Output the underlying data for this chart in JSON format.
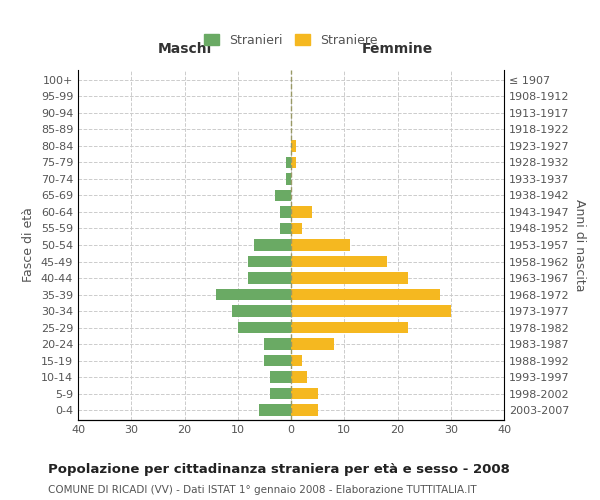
{
  "age_groups": [
    "100+",
    "95-99",
    "90-94",
    "85-89",
    "80-84",
    "75-79",
    "70-74",
    "65-69",
    "60-64",
    "55-59",
    "50-54",
    "45-49",
    "40-44",
    "35-39",
    "30-34",
    "25-29",
    "20-24",
    "15-19",
    "10-14",
    "5-9",
    "0-4"
  ],
  "birth_years": [
    "≤ 1907",
    "1908-1912",
    "1913-1917",
    "1918-1922",
    "1923-1927",
    "1928-1932",
    "1933-1937",
    "1938-1942",
    "1943-1947",
    "1948-1952",
    "1953-1957",
    "1958-1962",
    "1963-1967",
    "1968-1972",
    "1973-1977",
    "1978-1982",
    "1983-1987",
    "1988-1992",
    "1993-1997",
    "1998-2002",
    "2003-2007"
  ],
  "males": [
    0,
    0,
    0,
    0,
    0,
    1,
    1,
    3,
    2,
    2,
    7,
    8,
    8,
    14,
    11,
    10,
    5,
    5,
    4,
    4,
    6
  ],
  "females": [
    0,
    0,
    0,
    0,
    1,
    1,
    0,
    0,
    4,
    2,
    11,
    18,
    22,
    28,
    30,
    22,
    8,
    2,
    3,
    5,
    5
  ],
  "male_color": "#6aaa64",
  "female_color": "#f5b820",
  "bar_height": 0.7,
  "xlim": 40,
  "title": "Popolazione per cittadinanza straniera per età e sesso - 2008",
  "subtitle": "COMUNE DI RICADI (VV) - Dati ISTAT 1° gennaio 2008 - Elaborazione TUTTITALIA.IT",
  "ylabel_left": "Fasce di età",
  "ylabel_right": "Anni di nascita",
  "legend_male": "Stranieri",
  "legend_female": "Straniere",
  "maschi_label": "Maschi",
  "femmine_label": "Femmine",
  "background_color": "#ffffff",
  "grid_color": "#cccccc",
  "text_color": "#555555"
}
